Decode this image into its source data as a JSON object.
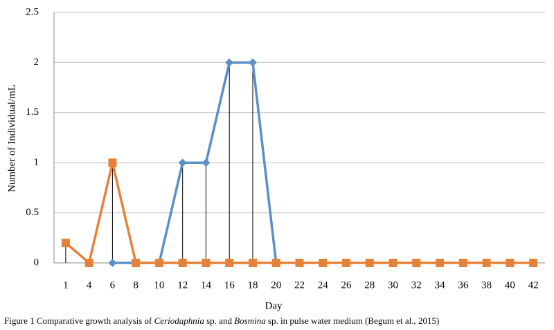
{
  "chart_data": {
    "type": "line",
    "categories": [
      "1",
      "4",
      "6",
      "8",
      "10",
      "12",
      "14",
      "16",
      "18",
      "20",
      "22",
      "24",
      "26",
      "28",
      "30",
      "32",
      "34",
      "36",
      "38",
      "40",
      "42"
    ],
    "series": [
      {
        "color": "#5b8fc7",
        "marker": "diamond",
        "values": [
          null,
          null,
          0,
          0,
          0,
          1,
          1,
          2,
          2,
          0,
          null,
          null,
          null,
          null,
          null,
          null,
          null,
          null,
          null,
          null,
          null
        ]
      },
      {
        "color": "#e6813a",
        "marker": "square",
        "values": [
          0.2,
          0,
          1,
          0,
          0,
          0,
          0,
          0,
          0,
          0,
          0,
          0,
          0,
          0,
          0,
          0,
          0,
          0,
          0,
          0,
          0
        ]
      }
    ],
    "ylim": [
      0,
      2.5
    ],
    "yticks": [
      0,
      0.5,
      1,
      1.5,
      2,
      2.5
    ],
    "grid": true,
    "drop_lines": true,
    "x_label": "Day",
    "y_label": "Number of Individual/mL",
    "caption": [
      "Figure 1 Comparative growth analysis of ",
      "Ceriodaphnia",
      " sp. and ",
      "Bosmina",
      " sp. in pulse water medium (Begum et al., 2015)"
    ]
  }
}
